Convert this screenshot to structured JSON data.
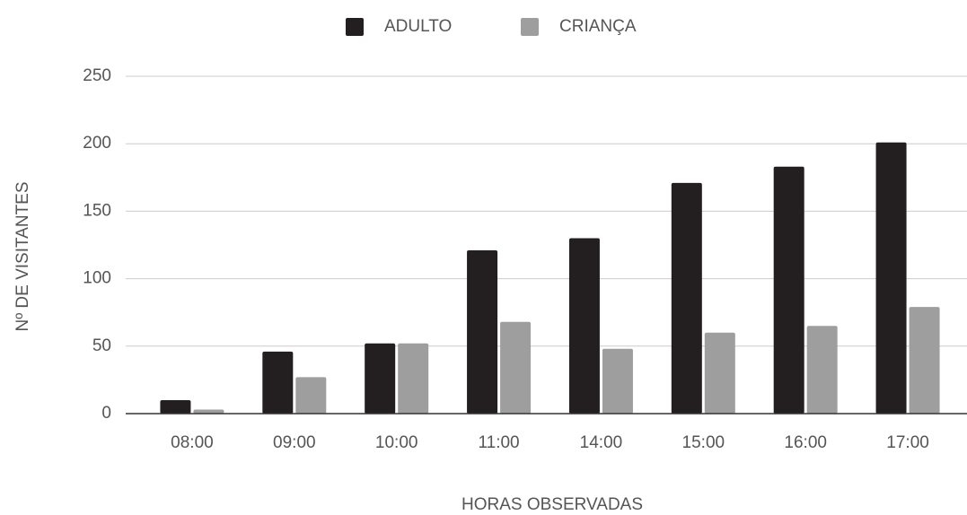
{
  "chart_data": {
    "type": "bar",
    "xlabel": "HORAS OBSERVADAS",
    "ylabel": "Nº DE VISITANTES",
    "categories": [
      "08:00",
      "09:00",
      "10:00",
      "11:00",
      "14:00",
      "15:00",
      "16:00",
      "17:00"
    ],
    "series": [
      {
        "name": "ADULTO",
        "color": "#231f20",
        "values": [
          10,
          46,
          52,
          121,
          130,
          171,
          183,
          201
        ]
      },
      {
        "name": "CRIANÇA",
        "color": "#9e9e9e",
        "values": [
          3,
          27,
          52,
          68,
          48,
          60,
          65,
          79
        ]
      }
    ],
    "ylim": [
      0,
      250
    ],
    "yticks": [
      0,
      50,
      100,
      150,
      200,
      250
    ],
    "grid": true,
    "legend": "top"
  }
}
